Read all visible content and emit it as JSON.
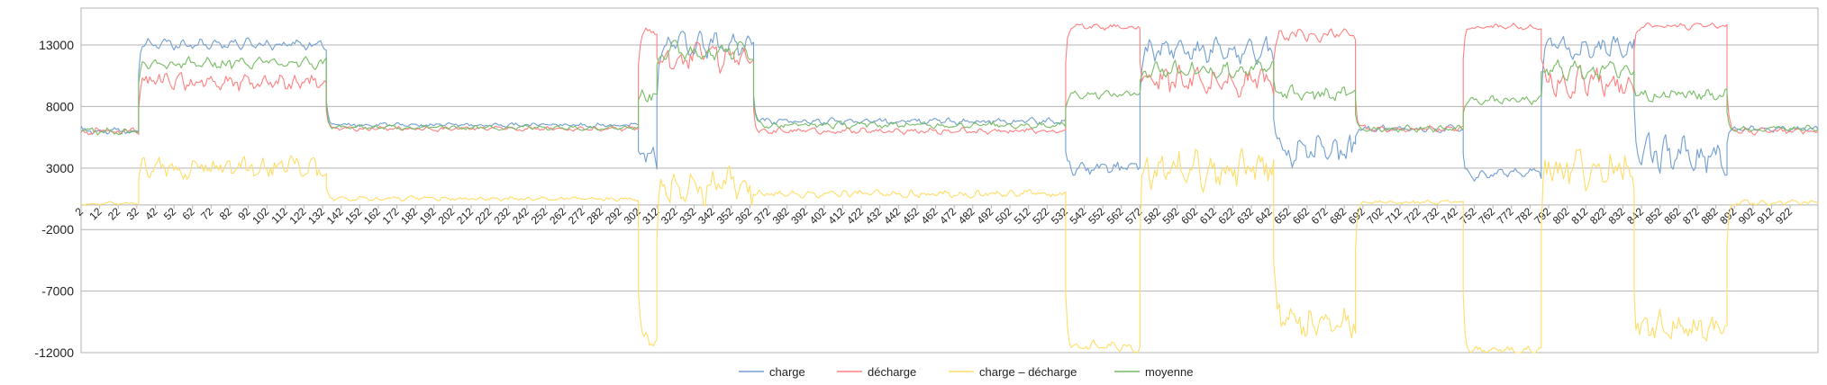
{
  "chart_data": {
    "type": "line",
    "title": "",
    "xlabel": "",
    "ylabel": "",
    "xlim": [
      2,
      937
    ],
    "ylim": [
      -12000,
      16000
    ],
    "yticks": [
      13000,
      8000,
      3000,
      -2000,
      -7000,
      -12000
    ],
    "xticks": [
      2,
      12,
      22,
      32,
      42,
      52,
      62,
      72,
      82,
      92,
      102,
      112,
      122,
      132,
      142,
      152,
      162,
      172,
      182,
      192,
      202,
      212,
      222,
      232,
      242,
      252,
      262,
      272,
      282,
      292,
      302,
      312,
      322,
      332,
      342,
      352,
      362,
      372,
      382,
      392,
      402,
      412,
      422,
      432,
      442,
      452,
      462,
      472,
      482,
      492,
      502,
      512,
      522,
      532,
      542,
      552,
      562,
      572,
      582,
      592,
      602,
      612,
      622,
      632,
      642,
      652,
      662,
      672,
      682,
      692,
      702,
      712,
      722,
      732,
      742,
      752,
      762,
      772,
      782,
      792,
      802,
      812,
      822,
      832,
      842,
      852,
      862,
      872,
      882,
      892,
      902,
      912,
      922
    ],
    "grid": "horizontal",
    "legend_position": "bottom",
    "series": [
      {
        "name": "charge",
        "color": "#729fcf",
        "segments": [
          {
            "x0": 2,
            "x1": 33,
            "mean": 6000,
            "amp": 500
          },
          {
            "x0": 33,
            "x1": 134,
            "mean": 13100,
            "amp": 700
          },
          {
            "x0": 134,
            "x1": 302,
            "mean": 6500,
            "amp": 300
          },
          {
            "x0": 302,
            "x1": 312,
            "mean": 4000,
            "amp": 2000
          },
          {
            "x0": 312,
            "x1": 364,
            "mean": 13000,
            "amp": 1500
          },
          {
            "x0": 364,
            "x1": 532,
            "mean": 6800,
            "amp": 400
          },
          {
            "x0": 532,
            "x1": 572,
            "mean": 3000,
            "amp": 900
          },
          {
            "x0": 572,
            "x1": 644,
            "mean": 12500,
            "amp": 1500
          },
          {
            "x0": 644,
            "x1": 688,
            "mean": 4500,
            "amp": 2200
          },
          {
            "x0": 688,
            "x1": 746,
            "mean": 6200,
            "amp": 400
          },
          {
            "x0": 746,
            "x1": 788,
            "mean": 2500,
            "amp": 700
          },
          {
            "x0": 788,
            "x1": 838,
            "mean": 12800,
            "amp": 1400
          },
          {
            "x0": 838,
            "x1": 888,
            "mean": 4000,
            "amp": 2200
          },
          {
            "x0": 888,
            "x1": 937,
            "mean": 6200,
            "amp": 400
          }
        ]
      },
      {
        "name": "décharge",
        "color": "#ff8080",
        "segments": [
          {
            "x0": 2,
            "x1": 33,
            "mean": 6000,
            "amp": 500
          },
          {
            "x0": 33,
            "x1": 134,
            "mean": 10000,
            "amp": 1200
          },
          {
            "x0": 134,
            "x1": 302,
            "mean": 6200,
            "amp": 300
          },
          {
            "x0": 302,
            "x1": 312,
            "mean": 14000,
            "amp": 600
          },
          {
            "x0": 312,
            "x1": 364,
            "mean": 12000,
            "amp": 1800
          },
          {
            "x0": 364,
            "x1": 532,
            "mean": 6000,
            "amp": 400
          },
          {
            "x0": 532,
            "x1": 572,
            "mean": 14500,
            "amp": 400
          },
          {
            "x0": 572,
            "x1": 644,
            "mean": 10000,
            "amp": 1800
          },
          {
            "x0": 644,
            "x1": 688,
            "mean": 13800,
            "amp": 800
          },
          {
            "x0": 688,
            "x1": 746,
            "mean": 6200,
            "amp": 400
          },
          {
            "x0": 746,
            "x1": 788,
            "mean": 14500,
            "amp": 400
          },
          {
            "x0": 788,
            "x1": 838,
            "mean": 10000,
            "amp": 1800
          },
          {
            "x0": 838,
            "x1": 888,
            "mean": 14500,
            "amp": 400
          },
          {
            "x0": 888,
            "x1": 937,
            "mean": 6000,
            "amp": 400
          }
        ]
      },
      {
        "name": "charge – décharge",
        "color": "#ffdd66",
        "segments": [
          {
            "x0": 2,
            "x1": 33,
            "mean": 100,
            "amp": 200
          },
          {
            "x0": 33,
            "x1": 134,
            "mean": 3000,
            "amp": 1500
          },
          {
            "x0": 134,
            "x1": 302,
            "mean": 500,
            "amp": 300
          },
          {
            "x0": 302,
            "x1": 312,
            "mean": -11000,
            "amp": 1000
          },
          {
            "x0": 312,
            "x1": 364,
            "mean": 1500,
            "amp": 2500
          },
          {
            "x0": 364,
            "x1": 532,
            "mean": 900,
            "amp": 500
          },
          {
            "x0": 532,
            "x1": 572,
            "mean": -11500,
            "amp": 700
          },
          {
            "x0": 572,
            "x1": 644,
            "mean": 3000,
            "amp": 2500
          },
          {
            "x0": 644,
            "x1": 688,
            "mean": -9500,
            "amp": 2200
          },
          {
            "x0": 688,
            "x1": 746,
            "mean": 200,
            "amp": 300
          },
          {
            "x0": 746,
            "x1": 788,
            "mean": -11800,
            "amp": 500
          },
          {
            "x0": 788,
            "x1": 838,
            "mean": 3000,
            "amp": 2500
          },
          {
            "x0": 838,
            "x1": 888,
            "mean": -10000,
            "amp": 2000
          },
          {
            "x0": 888,
            "x1": 937,
            "mean": 200,
            "amp": 300
          }
        ]
      },
      {
        "name": "moyenne",
        "color": "#77bc65",
        "segments": [
          {
            "x0": 2,
            "x1": 33,
            "mean": 6000,
            "amp": 500
          },
          {
            "x0": 33,
            "x1": 134,
            "mean": 11500,
            "amp": 800
          },
          {
            "x0": 134,
            "x1": 302,
            "mean": 6300,
            "amp": 300
          },
          {
            "x0": 302,
            "x1": 312,
            "mean": 9000,
            "amp": 1000
          },
          {
            "x0": 312,
            "x1": 364,
            "mean": 12500,
            "amp": 1200
          },
          {
            "x0": 364,
            "x1": 532,
            "mean": 6500,
            "amp": 400
          },
          {
            "x0": 532,
            "x1": 572,
            "mean": 9000,
            "amp": 500
          },
          {
            "x0": 572,
            "x1": 644,
            "mean": 11000,
            "amp": 1200
          },
          {
            "x0": 644,
            "x1": 688,
            "mean": 9000,
            "amp": 900
          },
          {
            "x0": 688,
            "x1": 746,
            "mean": 6200,
            "amp": 400
          },
          {
            "x0": 746,
            "x1": 788,
            "mean": 8500,
            "amp": 500
          },
          {
            "x0": 788,
            "x1": 838,
            "mean": 11000,
            "amp": 1200
          },
          {
            "x0": 838,
            "x1": 888,
            "mean": 9000,
            "amp": 900
          },
          {
            "x0": 888,
            "x1": 937,
            "mean": 6200,
            "amp": 400
          }
        ]
      }
    ]
  }
}
